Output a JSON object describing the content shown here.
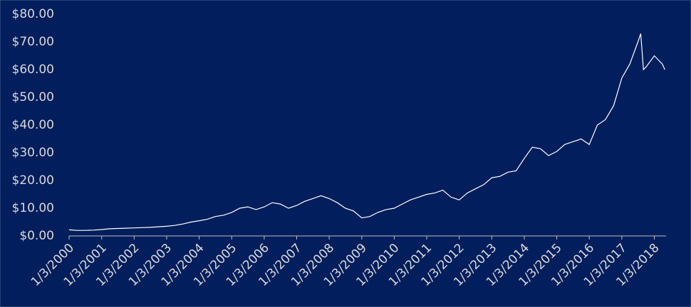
{
  "chart_data": {
    "type": "line",
    "color": "#ffffff",
    "x": [
      "1/3/2000",
      "4/3/2000",
      "7/3/2000",
      "10/3/2000",
      "1/3/2001",
      "4/3/2001",
      "7/3/2001",
      "10/3/2001",
      "1/3/2002",
      "4/3/2002",
      "7/3/2002",
      "10/3/2002",
      "1/3/2003",
      "4/3/2003",
      "7/3/2003",
      "10/3/2003",
      "1/3/2004",
      "4/3/2004",
      "7/3/2004",
      "10/3/2004",
      "1/3/2005",
      "4/3/2005",
      "7/3/2005",
      "10/3/2005",
      "1/3/2006",
      "4/3/2006",
      "7/3/2006",
      "10/3/2006",
      "1/3/2007",
      "4/3/2007",
      "7/3/2007",
      "10/3/2007",
      "1/3/2008",
      "4/3/2008",
      "7/3/2008",
      "10/3/2008",
      "1/3/2009",
      "4/3/2009",
      "7/3/2009",
      "10/3/2009",
      "1/3/2010",
      "4/3/2010",
      "7/3/2010",
      "10/3/2010",
      "1/3/2011",
      "4/3/2011",
      "7/3/2011",
      "10/3/2011",
      "1/3/2012",
      "4/3/2012",
      "7/3/2012",
      "10/3/2012",
      "1/3/2013",
      "4/3/2013",
      "7/3/2013",
      "10/3/2013",
      "1/3/2014",
      "4/3/2014",
      "7/3/2014",
      "10/3/2014",
      "1/3/2015",
      "4/3/2015",
      "7/3/2015",
      "10/3/2015",
      "1/3/2016",
      "4/3/2016",
      "7/3/2016",
      "10/3/2016",
      "1/3/2017",
      "4/3/2017",
      "7/3/2017",
      "8/3/2017",
      "9/3/2017",
      "10/3/2017",
      "1/3/2018",
      "4/3/2018",
      "5/1/2018"
    ],
    "values": [
      2.2,
      2.0,
      2.0,
      2.1,
      2.3,
      2.6,
      2.7,
      2.8,
      2.9,
      3.0,
      3.1,
      3.3,
      3.5,
      3.8,
      4.3,
      5.0,
      5.5,
      6.0,
      7.0,
      7.5,
      8.5,
      10.0,
      10.5,
      9.5,
      10.5,
      12.0,
      11.5,
      10.0,
      11.0,
      12.5,
      13.5,
      14.5,
      13.5,
      12.0,
      10.0,
      9.0,
      6.5,
      7.0,
      8.5,
      9.5,
      10.0,
      11.5,
      13.0,
      14.0,
      15.0,
      15.5,
      16.5,
      14.0,
      13.0,
      15.5,
      17.0,
      18.5,
      21.0,
      21.5,
      23.0,
      23.5,
      28.0,
      32.0,
      31.5,
      29.0,
      30.5,
      33.0,
      34.0,
      35.0,
      33.0,
      40.0,
      42.0,
      47.0,
      57.0,
      62.0,
      70.0,
      73.0,
      60.0,
      61.0,
      65.0,
      62.0,
      60.0
    ],
    "xlim": [
      "1/3/2000",
      "5/15/2018"
    ],
    "xticks": [
      "1/3/2000",
      "1/3/2001",
      "1/3/2002",
      "1/3/2003",
      "1/3/2004",
      "1/3/2005",
      "1/3/2006",
      "1/3/2007",
      "1/3/2008",
      "1/3/2009",
      "1/3/2010",
      "1/3/2011",
      "1/3/2012",
      "1/3/2013",
      "1/3/2014",
      "1/3/2015",
      "1/3/2016",
      "1/3/2017",
      "1/3/2018"
    ],
    "ylim": [
      0,
      80
    ],
    "yticks": [
      {
        "value": 0,
        "label": "$0.00"
      },
      {
        "value": 10,
        "label": "$10.00"
      },
      {
        "value": 20,
        "label": "$20.00"
      },
      {
        "value": 30,
        "label": "$30.00"
      },
      {
        "value": 40,
        "label": "$40.00"
      },
      {
        "value": 50,
        "label": "$50.00"
      },
      {
        "value": 60,
        "label": "$60.00"
      },
      {
        "value": 70,
        "label": "$70.00"
      },
      {
        "value": 80,
        "label": "$80.00"
      }
    ],
    "grid": false
  }
}
